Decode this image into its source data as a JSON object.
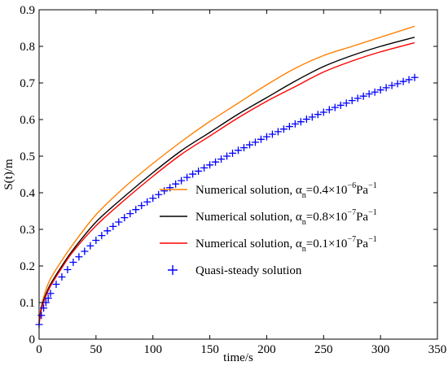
{
  "chart_data": {
    "type": "line",
    "title": "",
    "xlabel": "time/s",
    "ylabel": "S(t)/m",
    "xlim": [
      0,
      350
    ],
    "ylim": [
      0,
      0.9
    ],
    "xticks": [
      0,
      50,
      100,
      150,
      200,
      250,
      300,
      350
    ],
    "yticks": [
      0,
      0.1,
      0.2,
      0.3,
      0.4,
      0.5,
      0.6,
      0.7,
      0.8,
      0.9
    ],
    "xtick_labels": [
      "0",
      "50",
      "100",
      "150",
      "200",
      "250",
      "300",
      "350"
    ],
    "ytick_labels": [
      "0",
      "0.1",
      "0.2",
      "0.3",
      "0.4",
      "0.5",
      "0.6",
      "0.7",
      "0.8",
      "0.9"
    ],
    "grid": false,
    "legend_position": "center-right",
    "x": [
      0,
      2,
      5,
      10,
      20,
      30,
      50,
      75,
      100,
      125,
      150,
      175,
      200,
      225,
      250,
      275,
      300,
      330
    ],
    "series": [
      {
        "legend_prefix": "Numerical solution, ",
        "legend_alpha": "α",
        "legend_sub": "n",
        "legend_mid": "=0.4×10",
        "legend_exp": "−6",
        "legend_unit": "Pa",
        "legend_unit_exp": "−1",
        "color": "#ff8000",
        "style": "line",
        "values": [
          0.05,
          0.09,
          0.125,
          0.165,
          0.215,
          0.26,
          0.34,
          0.415,
          0.48,
          0.54,
          0.595,
          0.645,
          0.695,
          0.74,
          0.775,
          0.8,
          0.825,
          0.855
        ]
      },
      {
        "legend_prefix": "Numerical solution, ",
        "legend_alpha": "α",
        "legend_sub": "n",
        "legend_mid": "=0.8×10",
        "legend_exp": "−7",
        "legend_unit": "Pa",
        "legend_unit_exp": "−1",
        "color": "#000000",
        "style": "line",
        "values": [
          0.045,
          0.085,
          0.115,
          0.15,
          0.2,
          0.245,
          0.32,
          0.39,
          0.455,
          0.515,
          0.565,
          0.615,
          0.66,
          0.705,
          0.745,
          0.775,
          0.8,
          0.825
        ]
      },
      {
        "legend_prefix": "Numerical solution, ",
        "legend_alpha": "α",
        "legend_sub": "n",
        "legend_mid": "=0.1×10",
        "legend_exp": "−7",
        "legend_unit": "Pa",
        "legend_unit_exp": "−1",
        "color": "#ff0000",
        "style": "line",
        "values": [
          0.042,
          0.08,
          0.11,
          0.145,
          0.195,
          0.24,
          0.31,
          0.38,
          0.445,
          0.505,
          0.555,
          0.605,
          0.65,
          0.69,
          0.73,
          0.76,
          0.785,
          0.81
        ]
      },
      {
        "legend_prefix": "Quasi-steady solution",
        "color": "#0000ff",
        "style": "plus",
        "x": [
          0,
          2,
          4,
          6,
          8,
          10,
          15,
          20,
          25,
          30,
          35,
          40,
          45,
          50,
          55,
          60,
          65,
          70,
          75,
          80,
          85,
          90,
          95,
          100,
          105,
          110,
          115,
          120,
          125,
          130,
          135,
          140,
          145,
          150,
          155,
          160,
          165,
          170,
          175,
          180,
          185,
          190,
          195,
          200,
          205,
          210,
          215,
          220,
          225,
          230,
          235,
          240,
          245,
          250,
          255,
          260,
          265,
          270,
          275,
          280,
          285,
          290,
          295,
          300,
          305,
          310,
          315,
          320,
          325,
          330
        ],
        "values": [
          0.04,
          0.065,
          0.085,
          0.1,
          0.112,
          0.125,
          0.15,
          0.17,
          0.19,
          0.21,
          0.225,
          0.24,
          0.255,
          0.27,
          0.283,
          0.296,
          0.308,
          0.32,
          0.332,
          0.343,
          0.354,
          0.365,
          0.375,
          0.385,
          0.395,
          0.405,
          0.414,
          0.424,
          0.433,
          0.442,
          0.451,
          0.459,
          0.468,
          0.476,
          0.484,
          0.492,
          0.5,
          0.508,
          0.516,
          0.523,
          0.531,
          0.538,
          0.546,
          0.553,
          0.56,
          0.567,
          0.574,
          0.581,
          0.588,
          0.594,
          0.601,
          0.607,
          0.614,
          0.62,
          0.627,
          0.633,
          0.639,
          0.645,
          0.652,
          0.658,
          0.664,
          0.67,
          0.675,
          0.681,
          0.687,
          0.693,
          0.698,
          0.704,
          0.709,
          0.715
        ]
      }
    ]
  }
}
